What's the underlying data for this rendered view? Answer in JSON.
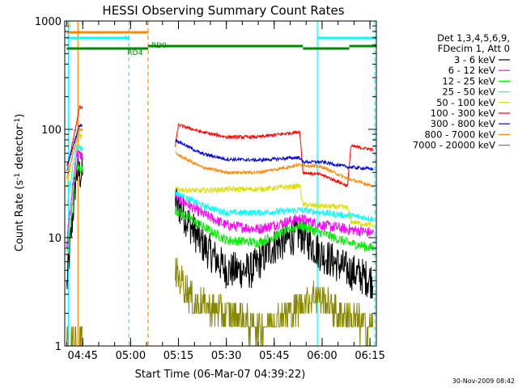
{
  "chart_data": {
    "type": "line",
    "title": "HESSI Observing Summary Count Rates",
    "xlabel": "Start Time (06-Mar-07 04:39:22)",
    "ylabel_main": "Count Rate (s",
    "ylabel_sup1": "-1",
    "ylabel_mid": " detector",
    "ylabel_sup2": "-1",
    "ylabel_end": ")",
    "y_scale": "log",
    "ylim": [
      1,
      1000
    ],
    "xlim": [
      "04:39:22",
      "06:17:00"
    ],
    "x_ticks": [
      "04:45",
      "05:00",
      "05:15",
      "05:30",
      "05:45",
      "06:00",
      "06:15"
    ],
    "y_ticks": [
      "1",
      "10",
      "100",
      "1000"
    ],
    "grid": false,
    "legend_position": "right",
    "legend_header": [
      "Det 1,3,4,5,6,9,",
      "FDecim 1, Att 0"
    ],
    "series": [
      {
        "name": "3 - 6 keV",
        "color": "#000000",
        "points": [
          [
            "04:40:00",
            3.5
          ],
          [
            "04:43:00",
            40
          ],
          [
            "05:14:00",
            22
          ],
          [
            "05:22:00",
            9
          ],
          [
            "05:30:00",
            5
          ],
          [
            "05:38:00",
            5
          ],
          [
            "05:44:00",
            8
          ],
          [
            "05:53:00",
            11
          ],
          [
            "06:00:00",
            7
          ],
          [
            "06:08:00",
            5
          ],
          [
            "06:16:00",
            4
          ]
        ]
      },
      {
        "name": "6 - 12 keV",
        "color": "#ff00ff",
        "points": [
          [
            "04:40:00",
            9
          ],
          [
            "04:43:00",
            60
          ],
          [
            "05:14:00",
            24
          ],
          [
            "05:22:00",
            17
          ],
          [
            "05:30:00",
            13
          ],
          [
            "05:40:00",
            12
          ],
          [
            "05:53:00",
            15
          ],
          [
            "06:00:00",
            13
          ],
          [
            "06:08:00",
            12
          ],
          [
            "06:16:00",
            11
          ]
        ]
      },
      {
        "name": "12 - 25 keV",
        "color": "#00ee00",
        "points": [
          [
            "04:40:00",
            7
          ],
          [
            "04:43:00",
            45
          ],
          [
            "05:14:00",
            18
          ],
          [
            "05:22:00",
            13
          ],
          [
            "05:30:00",
            9.5
          ],
          [
            "05:40:00",
            9
          ],
          [
            "05:53:00",
            13
          ],
          [
            "06:00:00",
            11
          ],
          [
            "06:08:00",
            9
          ],
          [
            "06:16:00",
            8
          ]
        ]
      },
      {
        "name": "25 - 50 keV",
        "color": "#00ffff",
        "points": [
          [
            "04:40:00",
            20
          ],
          [
            "04:43:00",
            70
          ],
          [
            "05:14:00",
            26
          ],
          [
            "05:22:00",
            20
          ],
          [
            "05:30:00",
            17
          ],
          [
            "05:40:00",
            17
          ],
          [
            "05:53:00",
            18
          ],
          [
            "06:00:00",
            17
          ],
          [
            "06:08:00",
            16
          ],
          [
            "06:16:00",
            15
          ]
        ]
      },
      {
        "name": "50 - 100 keV",
        "color": "#dddd00",
        "points": [
          [
            "04:40:00",
            30
          ],
          [
            "04:43:00",
            90
          ],
          [
            "05:14:00",
            28
          ],
          [
            "05:22:00",
            27
          ],
          [
            "05:30:00",
            28
          ],
          [
            "05:40:00",
            28
          ],
          [
            "05:53:00",
            30
          ],
          [
            "05:54:00",
            20
          ],
          [
            "06:08:00",
            19
          ],
          [
            "06:09:00",
            14
          ],
          [
            "06:16:00",
            13
          ]
        ]
      },
      {
        "name": "100 - 300 keV",
        "color": "#ff0000",
        "points": [
          [
            "04:40:00",
            40
          ],
          [
            "04:44:00",
            160
          ],
          [
            "05:14:00",
            70
          ],
          [
            "05:15:00",
            110
          ],
          [
            "05:22:00",
            95
          ],
          [
            "05:30:00",
            85
          ],
          [
            "05:40:00",
            85
          ],
          [
            "05:53:00",
            95
          ],
          [
            "05:54:00",
            40
          ],
          [
            "06:00:00",
            38
          ],
          [
            "06:08:00",
            30
          ],
          [
            "06:09:00",
            70
          ],
          [
            "06:16:00",
            65
          ]
        ]
      },
      {
        "name": "300 - 800 keV",
        "color": "#0000dd",
        "points": [
          [
            "04:40:00",
            45
          ],
          [
            "04:44:00",
            110
          ],
          [
            "05:14:00",
            80
          ],
          [
            "05:22:00",
            60
          ],
          [
            "05:30:00",
            53
          ],
          [
            "05:40:00",
            52
          ],
          [
            "05:53:00",
            55
          ],
          [
            "05:54:00",
            50
          ],
          [
            "06:00:00",
            50
          ],
          [
            "06:08:00",
            45
          ],
          [
            "06:16:00",
            43
          ]
        ]
      },
      {
        "name": "800 - 7000 keV",
        "color": "#ff8800",
        "points": [
          [
            "04:40:00",
            35
          ],
          [
            "04:44:00",
            100
          ],
          [
            "05:14:00",
            60
          ],
          [
            "05:22:00",
            45
          ],
          [
            "05:30:00",
            40
          ],
          [
            "05:40:00",
            40
          ],
          [
            "05:53:00",
            47
          ],
          [
            "06:00:00",
            45
          ],
          [
            "06:08:00",
            35
          ],
          [
            "06:16:00",
            30
          ]
        ]
      },
      {
        "name": "7000 - 20000 keV",
        "color": "#888800",
        "points": [
          [
            "04:40:00",
            1
          ],
          [
            "04:44:00",
            1
          ],
          [
            "05:14:00",
            5
          ],
          [
            "05:20:00",
            2.5
          ],
          [
            "05:30:00",
            2
          ],
          [
            "05:40:00",
            1.5
          ],
          [
            "05:50:00",
            2
          ],
          [
            "05:58:00",
            3
          ],
          [
            "06:05:00",
            2
          ],
          [
            "06:16:00",
            1.5
          ]
        ]
      }
    ],
    "flag_bars": [
      {
        "label": "S",
        "color": "#ff8800",
        "segments": [
          [
            "04:40:00",
            "05:05:30"
          ]
        ]
      },
      {
        "label": "N",
        "color": "#00ffff",
        "segments": [
          [
            "04:40:00",
            "04:59:30"
          ],
          [
            "05:58:30",
            "06:17:00"
          ]
        ]
      },
      {
        "label": "RD0",
        "color": "#008800",
        "segments": [
          [
            "05:05:30",
            "05:54:00"
          ],
          [
            "06:08:30",
            "06:17:00"
          ]
        ]
      },
      {
        "label": "RD4",
        "color": "#008800",
        "segments": [
          [
            "04:40:00",
            "05:05:30"
          ],
          [
            "05:54:00",
            "06:08:30"
          ]
        ]
      }
    ],
    "vertical_markers": [
      {
        "time": "04:40:30",
        "color": "#00ffff",
        "style": "solid"
      },
      {
        "time": "04:43:30",
        "color": "#ff8800",
        "style": "solid"
      },
      {
        "time": "04:59:30",
        "color": "#00ffff",
        "style": "dashed"
      },
      {
        "time": "05:05:30",
        "color": "#ff8800",
        "style": "dashed"
      },
      {
        "time": "05:58:30",
        "color": "#00ffff",
        "style": "solid"
      },
      {
        "time": "06:16:30",
        "color": "#00ffff",
        "style": "dashed"
      }
    ],
    "data_gap": [
      "04:45:00",
      "05:14:00"
    ]
  },
  "footer": {
    "timestamp": "30-Nov-2009 08:42"
  }
}
